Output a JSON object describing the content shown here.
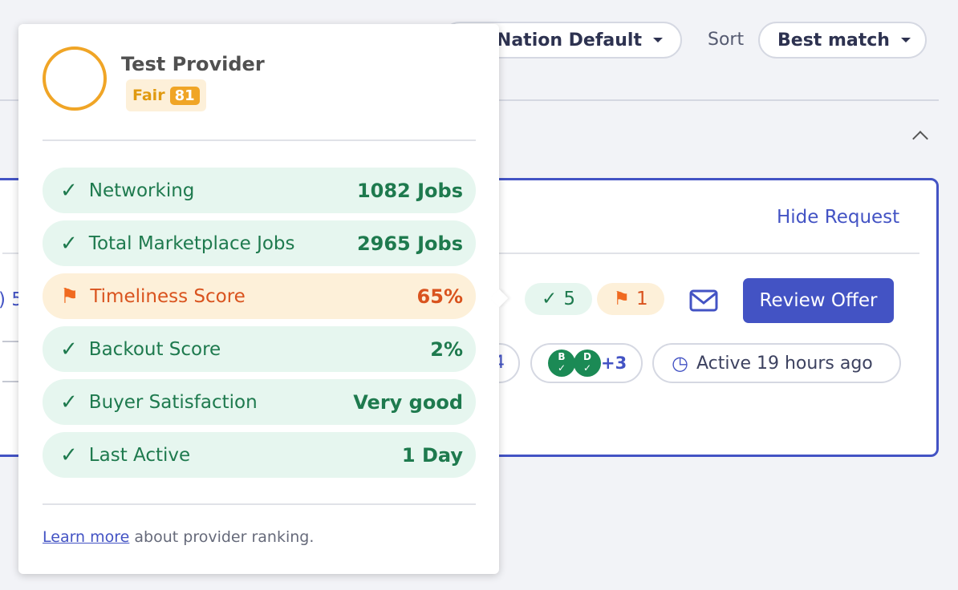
{
  "toolbar": {
    "filter_value": "Nation Default",
    "sort_label": "Sort",
    "sort_value": "Best match"
  },
  "card": {
    "hide_request": "Hide Request",
    "left_fragment": ") 5",
    "left_chip_fragment": "4",
    "approved_count": "5",
    "flag_count": "1",
    "review_offer": "Review Offer",
    "badges_more": "+3",
    "badge_b": "B",
    "badge_d": "D",
    "active": "Active 19 hours ago"
  },
  "popover": {
    "name": "Test Provider",
    "rating_label": "Fair",
    "rating_score": "81",
    "rows": [
      {
        "label": "Networking",
        "value": "1082 Jobs",
        "status": "good"
      },
      {
        "label": "Total Marketplace Jobs",
        "value": "2965 Jobs",
        "status": "good"
      },
      {
        "label": "Timeliness Score",
        "value": "65%",
        "status": "warn"
      },
      {
        "label": "Backout Score",
        "value": "2%",
        "status": "good"
      },
      {
        "label": "Buyer Satisfaction",
        "value": "Very good",
        "status": "good"
      },
      {
        "label": "Last Active",
        "value": "1 Day",
        "status": "good"
      }
    ],
    "learn_more": "Learn more",
    "footer_text": " about provider ranking."
  },
  "colors": {
    "accent": "#4353c4",
    "good": "#1e7a4e",
    "warn": "#d9531e",
    "ring": "#f0a526"
  }
}
